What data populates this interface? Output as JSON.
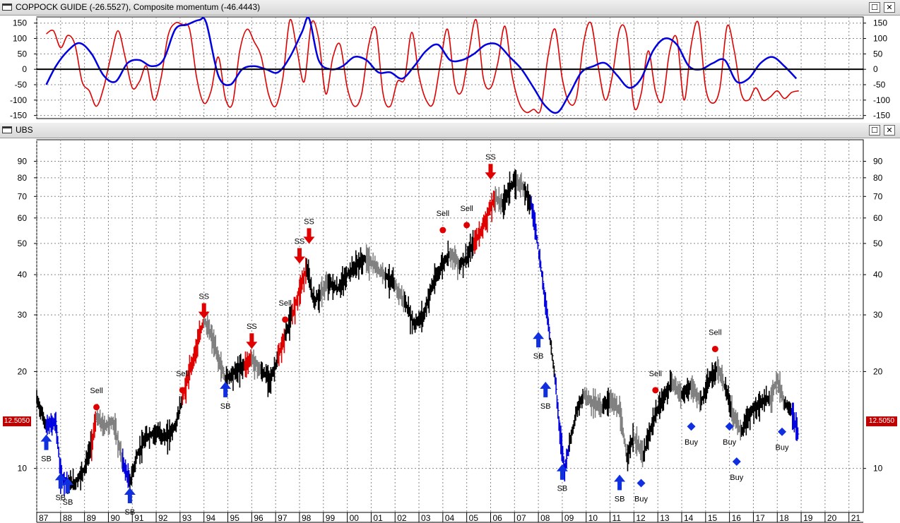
{
  "window1": {
    "title": "COPPOCK GUIDE (-26.5527), Composite momentum (-46.4443)",
    "restore_label": "☐",
    "close_label": "✕"
  },
  "window2": {
    "title": "UBS",
    "restore_label": "☐",
    "close_label": "✕"
  },
  "price_tag": "12.5050",
  "chart_data": [
    {
      "type": "line",
      "title": "COPPOCK GUIDE (-26.5527), Composite momentum (-46.4443)",
      "ylim": [
        -160,
        170
      ],
      "yticks": [
        150,
        100,
        50,
        0,
        -50,
        -100,
        -150
      ],
      "grid": true,
      "zero_line": true,
      "colors": {
        "red": "#e00000",
        "blue": "#0000e0"
      },
      "series": [
        {
          "color": "red",
          "x": [
            1987.4,
            1987.7,
            1988.0,
            1988.3,
            1988.6,
            1988.9,
            1989.2,
            1989.5,
            1989.8,
            1990.1,
            1990.4,
            1990.7,
            1991.0,
            1991.3,
            1991.6,
            1991.9,
            1992.2,
            1992.5,
            1992.8,
            1993.1,
            1993.4,
            1993.7,
            1994.0,
            1994.3,
            1994.6,
            1994.9,
            1995.2,
            1995.5,
            1995.8,
            1996.1,
            1996.4,
            1996.7,
            1997.0,
            1997.3,
            1997.6,
            1997.9,
            1998.2,
            1998.5,
            1998.8,
            1999.1,
            1999.4,
            1999.7,
            2000.0,
            2000.3,
            2000.6,
            2000.9,
            2001.2,
            2001.5,
            2001.8,
            2002.1,
            2002.4,
            2002.7,
            2003.0,
            2003.3,
            2003.6,
            2003.9,
            2004.2,
            2004.5,
            2004.8,
            2005.1,
            2005.4,
            2005.7,
            2006.0,
            2006.3,
            2006.6,
            2006.9,
            2007.2,
            2007.5,
            2007.8,
            2008.1,
            2008.4,
            2008.7,
            2009.0,
            2009.3,
            2009.6,
            2009.9,
            2010.2,
            2010.5,
            2010.8,
            2011.1,
            2011.4,
            2011.7,
            2012.0,
            2012.3,
            2012.6,
            2012.9,
            2013.2,
            2013.5,
            2013.8,
            2014.1,
            2014.4,
            2014.7,
            2015.0,
            2015.3,
            2015.6,
            2015.9,
            2016.2,
            2016.5,
            2016.8,
            2017.1,
            2017.4,
            2017.7,
            2018.0,
            2018.3,
            2018.6,
            2018.9
          ],
          "y": [
            115,
            125,
            70,
            110,
            80,
            -40,
            -70,
            -120,
            -60,
            40,
            125,
            40,
            -60,
            -40,
            10,
            -100,
            -30,
            110,
            150,
            145,
            130,
            -30,
            -110,
            -70,
            40,
            -95,
            -110,
            60,
            130,
            90,
            40,
            -80,
            -120,
            -30,
            160,
            60,
            -40,
            150,
            100,
            -80,
            40,
            80,
            -60,
            -120,
            -80,
            80,
            130,
            -80,
            -120,
            -40,
            -30,
            120,
            -20,
            -100,
            -110,
            20,
            130,
            -50,
            -70,
            60,
            160,
            -30,
            -60,
            20,
            140,
            -20,
            -110,
            -140,
            -130,
            -130,
            40,
            130,
            -30,
            -110,
            -90,
            90,
            150,
            10,
            -100,
            -20,
            130,
            110,
            -120,
            -80,
            60,
            -70,
            -100,
            60,
            100,
            -100,
            80,
            150,
            -60,
            -110,
            -60,
            140,
            60,
            -80,
            -100,
            -60,
            -100,
            -90,
            -70,
            -95,
            -75,
            -70
          ]
        },
        {
          "color": "blue",
          "x": [
            1987.4,
            1987.8,
            1988.3,
            1988.8,
            1989.3,
            1989.8,
            1990.3,
            1990.8,
            1991.3,
            1991.8,
            1992.3,
            1992.8,
            1993.3,
            1993.8,
            1994.1,
            1994.6,
            1995.1,
            1995.6,
            1996.1,
            1996.6,
            1997.1,
            1997.6,
            1998.1,
            1998.4,
            1998.8,
            1999.3,
            1999.8,
            2000.3,
            2000.8,
            2001.3,
            2001.8,
            2002.3,
            2002.8,
            2003.3,
            2003.8,
            2004.3,
            2004.8,
            2005.3,
            2005.8,
            2006.3,
            2006.8,
            2007.3,
            2007.8,
            2008.3,
            2008.8,
            2009.3,
            2009.8,
            2010.3,
            2010.8,
            2011.3,
            2011.8,
            2012.3,
            2012.8,
            2013.3,
            2013.8,
            2014.3,
            2014.8,
            2015.3,
            2015.8,
            2016.3,
            2016.8,
            2017.3,
            2017.8,
            2018.3,
            2018.8
          ],
          "y": [
            -50,
            10,
            60,
            85,
            50,
            -20,
            -40,
            20,
            30,
            10,
            30,
            130,
            145,
            160,
            150,
            -20,
            -50,
            0,
            10,
            0,
            -10,
            40,
            120,
            165,
            30,
            0,
            10,
            40,
            30,
            -10,
            -10,
            -30,
            10,
            60,
            80,
            30,
            30,
            50,
            80,
            80,
            40,
            0,
            -60,
            -120,
            -140,
            -80,
            -10,
            10,
            20,
            -20,
            -60,
            -30,
            60,
            100,
            80,
            10,
            0,
            20,
            30,
            -40,
            -30,
            20,
            40,
            10,
            -30
          ]
        }
      ]
    },
    {
      "type": "line",
      "title": "UBS",
      "y_scale": "log",
      "ylim": [
        7.3,
        105
      ],
      "yticks": [
        90,
        80,
        70,
        60,
        50,
        40,
        30,
        20,
        10
      ],
      "xticks": [
        "87",
        "88",
        "89",
        "90",
        "91",
        "92",
        "93",
        "94",
        "95",
        "96",
        "97",
        "98",
        "99",
        "00",
        "01",
        "02",
        "03",
        "04",
        "05",
        "06",
        "07",
        "08",
        "09",
        "10",
        "11",
        "12",
        "13",
        "14",
        "15",
        "16",
        "17",
        "18",
        "19",
        "20",
        "21"
      ],
      "grid": true,
      "last_value": 12.505,
      "colors": {
        "red": "#e00000",
        "black": "#000000",
        "grey": "#808080",
        "blue": "#0000e0"
      },
      "price": [
        {
          "x": 1987.0,
          "y": 16.5,
          "c": "black"
        },
        {
          "x": 1987.4,
          "y": 13.5,
          "c": "black"
        },
        {
          "x": 1987.8,
          "y": 14.0,
          "c": "blue"
        },
        {
          "x": 1988.0,
          "y": 9.5,
          "c": "blue"
        },
        {
          "x": 1988.3,
          "y": 9.0,
          "c": "blue"
        },
        {
          "x": 1988.6,
          "y": 9.0,
          "c": "black"
        },
        {
          "x": 1989.0,
          "y": 10.0,
          "c": "black"
        },
        {
          "x": 1989.3,
          "y": 12.0,
          "c": "black"
        },
        {
          "x": 1989.5,
          "y": 14.5,
          "c": "red"
        },
        {
          "x": 1989.8,
          "y": 13.5,
          "c": "grey"
        },
        {
          "x": 1990.2,
          "y": 14.0,
          "c": "grey"
        },
        {
          "x": 1990.6,
          "y": 10.5,
          "c": "grey"
        },
        {
          "x": 1990.9,
          "y": 9.0,
          "c": "blue"
        },
        {
          "x": 1991.2,
          "y": 11.0,
          "c": "black"
        },
        {
          "x": 1991.6,
          "y": 12.5,
          "c": "black"
        },
        {
          "x": 1992.0,
          "y": 13.0,
          "c": "black"
        },
        {
          "x": 1992.4,
          "y": 12.5,
          "c": "black"
        },
        {
          "x": 1992.8,
          "y": 13.5,
          "c": "black"
        },
        {
          "x": 1993.1,
          "y": 16.5,
          "c": "black"
        },
        {
          "x": 1993.4,
          "y": 20.0,
          "c": "red"
        },
        {
          "x": 1993.7,
          "y": 24.0,
          "c": "red"
        },
        {
          "x": 1994.0,
          "y": 29.0,
          "c": "red"
        },
        {
          "x": 1994.3,
          "y": 26.0,
          "c": "grey"
        },
        {
          "x": 1994.6,
          "y": 22.0,
          "c": "grey"
        },
        {
          "x": 1994.9,
          "y": 19.0,
          "c": "grey"
        },
        {
          "x": 1995.3,
          "y": 20.0,
          "c": "black"
        },
        {
          "x": 1995.7,
          "y": 21.0,
          "c": "black"
        },
        {
          "x": 1996.0,
          "y": 22.0,
          "c": "red"
        },
        {
          "x": 1996.4,
          "y": 20.0,
          "c": "grey"
        },
        {
          "x": 1996.8,
          "y": 19.0,
          "c": "black"
        },
        {
          "x": 1997.1,
          "y": 22.0,
          "c": "black"
        },
        {
          "x": 1997.4,
          "y": 26.0,
          "c": "red"
        },
        {
          "x": 1997.7,
          "y": 30.0,
          "c": "black"
        },
        {
          "x": 1998.0,
          "y": 36.0,
          "c": "red"
        },
        {
          "x": 1998.3,
          "y": 42.0,
          "c": "red"
        },
        {
          "x": 1998.6,
          "y": 33.0,
          "c": "black"
        },
        {
          "x": 1998.9,
          "y": 35.0,
          "c": "black"
        },
        {
          "x": 1999.2,
          "y": 38.0,
          "c": "grey"
        },
        {
          "x": 1999.6,
          "y": 36.0,
          "c": "black"
        },
        {
          "x": 2000.0,
          "y": 40.0,
          "c": "black"
        },
        {
          "x": 2000.4,
          "y": 43.0,
          "c": "black"
        },
        {
          "x": 2000.8,
          "y": 45.0,
          "c": "black"
        },
        {
          "x": 2001.2,
          "y": 42.0,
          "c": "grey"
        },
        {
          "x": 2001.6,
          "y": 40.0,
          "c": "grey"
        },
        {
          "x": 2002.0,
          "y": 37.0,
          "c": "black"
        },
        {
          "x": 2002.4,
          "y": 33.0,
          "c": "grey"
        },
        {
          "x": 2002.8,
          "y": 28.0,
          "c": "black"
        },
        {
          "x": 2003.2,
          "y": 30.0,
          "c": "black"
        },
        {
          "x": 2003.5,
          "y": 36.0,
          "c": "black"
        },
        {
          "x": 2003.9,
          "y": 42.0,
          "c": "black"
        },
        {
          "x": 2004.3,
          "y": 47.0,
          "c": "black"
        },
        {
          "x": 2004.7,
          "y": 43.0,
          "c": "grey"
        },
        {
          "x": 2005.0,
          "y": 45.0,
          "c": "black"
        },
        {
          "x": 2005.3,
          "y": 50.0,
          "c": "black"
        },
        {
          "x": 2005.6,
          "y": 55.0,
          "c": "red"
        },
        {
          "x": 2005.9,
          "y": 62.0,
          "c": "red"
        },
        {
          "x": 2006.2,
          "y": 70.0,
          "c": "red"
        },
        {
          "x": 2006.5,
          "y": 66.0,
          "c": "grey"
        },
        {
          "x": 2006.8,
          "y": 75.0,
          "c": "black"
        },
        {
          "x": 2007.1,
          "y": 78.0,
          "c": "black"
        },
        {
          "x": 2007.4,
          "y": 75.0,
          "c": "grey"
        },
        {
          "x": 2007.7,
          "y": 66.0,
          "c": "black"
        },
        {
          "x": 2007.9,
          "y": 55.0,
          "c": "blue"
        },
        {
          "x": 2008.1,
          "y": 42.0,
          "c": "blue"
        },
        {
          "x": 2008.3,
          "y": 33.0,
          "c": "blue"
        },
        {
          "x": 2008.5,
          "y": 25.0,
          "c": "blue"
        },
        {
          "x": 2008.7,
          "y": 19.0,
          "c": "black"
        },
        {
          "x": 2008.9,
          "y": 13.0,
          "c": "blue"
        },
        {
          "x": 2009.1,
          "y": 10.0,
          "c": "blue"
        },
        {
          "x": 2009.3,
          "y": 12.0,
          "c": "blue"
        },
        {
          "x": 2009.6,
          "y": 15.0,
          "c": "black"
        },
        {
          "x": 2009.9,
          "y": 17.0,
          "c": "black"
        },
        {
          "x": 2010.3,
          "y": 16.0,
          "c": "grey"
        },
        {
          "x": 2010.7,
          "y": 15.5,
          "c": "grey"
        },
        {
          "x": 2011.0,
          "y": 16.5,
          "c": "black"
        },
        {
          "x": 2011.4,
          "y": 15.0,
          "c": "grey"
        },
        {
          "x": 2011.7,
          "y": 11.0,
          "c": "grey"
        },
        {
          "x": 2012.0,
          "y": 12.5,
          "c": "black"
        },
        {
          "x": 2012.4,
          "y": 11.0,
          "c": "grey"
        },
        {
          "x": 2012.8,
          "y": 14.0,
          "c": "black"
        },
        {
          "x": 2013.2,
          "y": 16.5,
          "c": "black"
        },
        {
          "x": 2013.6,
          "y": 18.5,
          "c": "black"
        },
        {
          "x": 2014.0,
          "y": 17.0,
          "c": "grey"
        },
        {
          "x": 2014.4,
          "y": 18.0,
          "c": "black"
        },
        {
          "x": 2014.8,
          "y": 16.0,
          "c": "grey"
        },
        {
          "x": 2015.2,
          "y": 19.0,
          "c": "black"
        },
        {
          "x": 2015.5,
          "y": 20.5,
          "c": "black"
        },
        {
          "x": 2015.8,
          "y": 18.0,
          "c": "grey"
        },
        {
          "x": 2016.1,
          "y": 15.0,
          "c": "black"
        },
        {
          "x": 2016.5,
          "y": 13.0,
          "c": "grey"
        },
        {
          "x": 2016.9,
          "y": 15.0,
          "c": "black"
        },
        {
          "x": 2017.3,
          "y": 16.0,
          "c": "black"
        },
        {
          "x": 2017.7,
          "y": 16.5,
          "c": "black"
        },
        {
          "x": 2018.0,
          "y": 19.0,
          "c": "grey"
        },
        {
          "x": 2018.3,
          "y": 16.0,
          "c": "grey"
        },
        {
          "x": 2018.6,
          "y": 15.0,
          "c": "black"
        },
        {
          "x": 2018.9,
          "y": 12.5,
          "c": "blue"
        }
      ],
      "annotations": [
        {
          "kind": "arrow-up",
          "x": 1987.4,
          "y": 12.0,
          "label": "SB"
        },
        {
          "kind": "arrow-up",
          "x": 1988.0,
          "y": 9.1,
          "label": "SB"
        },
        {
          "kind": "arrow-up",
          "x": 1988.3,
          "y": 8.8,
          "label": "SB"
        },
        {
          "kind": "dot",
          "x": 1989.5,
          "y": 15.5,
          "label": "Sell"
        },
        {
          "kind": "arrow-up",
          "x": 1990.9,
          "y": 8.2,
          "label": "SB"
        },
        {
          "kind": "dot",
          "x": 1993.1,
          "y": 17.5,
          "label": "Sell"
        },
        {
          "kind": "arrow-down",
          "x": 1994.0,
          "y": 31.0,
          "label": "SS"
        },
        {
          "kind": "arrow-up",
          "x": 1994.9,
          "y": 17.5,
          "label": "SB"
        },
        {
          "kind": "arrow-down",
          "x": 1996.0,
          "y": 25.0,
          "label": "SS"
        },
        {
          "kind": "dot",
          "x": 1997.4,
          "y": 29.0,
          "label": "Sell"
        },
        {
          "kind": "arrow-down",
          "x": 1998.0,
          "y": 46.0,
          "label": "SS"
        },
        {
          "kind": "arrow-down",
          "x": 1998.4,
          "y": 53.0,
          "label": "SS"
        },
        {
          "kind": "dot",
          "x": 2004.0,
          "y": 55.0,
          "label": "Sell"
        },
        {
          "kind": "dot",
          "x": 2005.0,
          "y": 57.0,
          "label": "Sell"
        },
        {
          "kind": "arrow-down",
          "x": 2006.0,
          "y": 84.0,
          "label": "SS"
        },
        {
          "kind": "arrow-up",
          "x": 2008.0,
          "y": 25.0,
          "label": "SB"
        },
        {
          "kind": "arrow-up",
          "x": 2008.3,
          "y": 17.5,
          "label": "SB"
        },
        {
          "kind": "arrow-up",
          "x": 2009.0,
          "y": 9.7,
          "label": "SB"
        },
        {
          "kind": "arrow-up",
          "x": 2011.4,
          "y": 9.0,
          "label": "SB"
        },
        {
          "kind": "diamond",
          "x": 2012.3,
          "y": 9.0,
          "label": "Buy"
        },
        {
          "kind": "dot",
          "x": 2012.9,
          "y": 17.5,
          "label": "Sell"
        },
        {
          "kind": "diamond",
          "x": 2014.4,
          "y": 13.5,
          "label": "Buy"
        },
        {
          "kind": "dot",
          "x": 2015.4,
          "y": 23.5,
          "label": "Sell"
        },
        {
          "kind": "diamond",
          "x": 2016.0,
          "y": 13.5,
          "label": "Buy"
        },
        {
          "kind": "diamond",
          "x": 2016.3,
          "y": 10.5,
          "label": "Buy"
        },
        {
          "kind": "diamond",
          "x": 2018.2,
          "y": 13.0,
          "label": "Buy"
        }
      ]
    }
  ]
}
